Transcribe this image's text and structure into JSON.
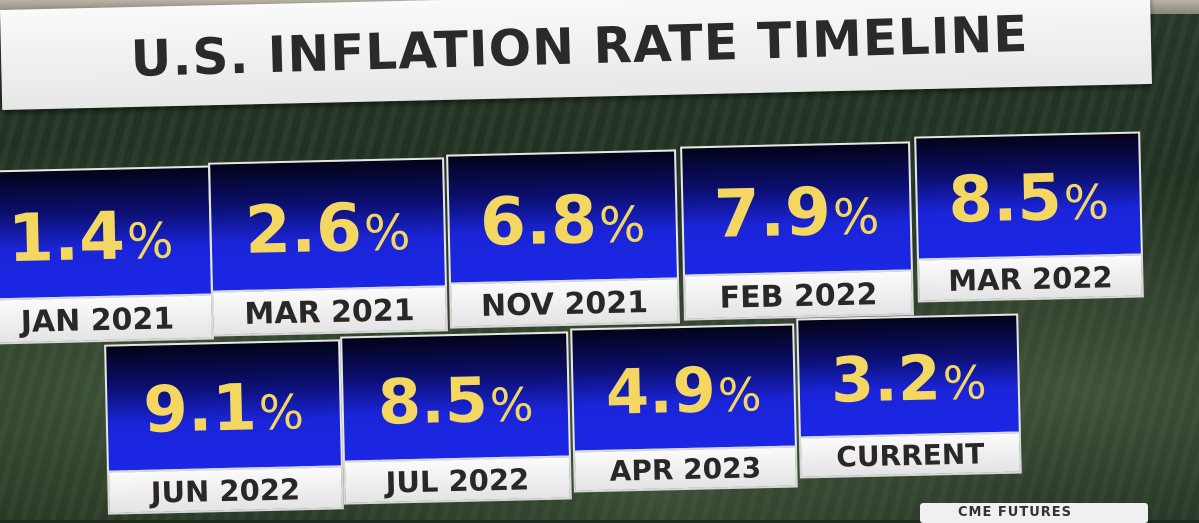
{
  "title": "U.S. INFLATION RATE TIMELINE",
  "percent_sign": "%",
  "colors": {
    "value_text": "#f3d760",
    "panel_blue": "#1b27e6",
    "label_bg": "#f0f0f0",
    "title_text": "#2c2a28"
  },
  "row1": [
    {
      "value": "1.4",
      "label": "JAN 2021"
    },
    {
      "value": "2.6",
      "label": "MAR 2021"
    },
    {
      "value": "6.8",
      "label": "NOV 2021"
    },
    {
      "value": "7.9",
      "label": "FEB 2022"
    },
    {
      "value": "8.5",
      "label": "MAR 2022"
    }
  ],
  "row2": [
    {
      "value": "9.1",
      "label": "JUN 2022"
    },
    {
      "value": "8.5",
      "label": "JUL 2022"
    },
    {
      "value": "4.9",
      "label": "APR 2023"
    },
    {
      "value": "3.2",
      "label": "CURRENT"
    }
  ],
  "corner_tag": "CME FUTURES"
}
